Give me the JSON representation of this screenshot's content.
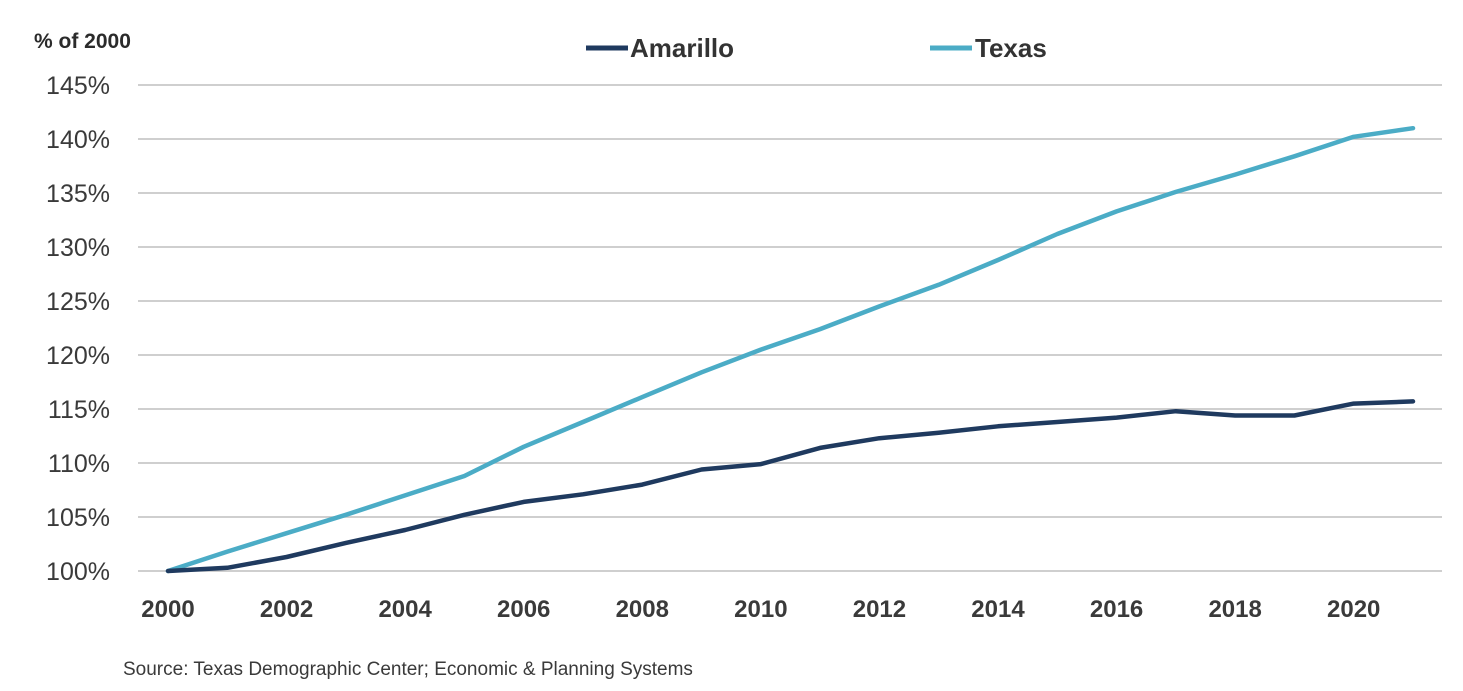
{
  "chart_data": {
    "type": "line",
    "ylabel": "% of 2000",
    "x": [
      2000,
      2001,
      2002,
      2003,
      2004,
      2005,
      2006,
      2007,
      2008,
      2009,
      2010,
      2011,
      2012,
      2013,
      2014,
      2015,
      2016,
      2017,
      2018,
      2019,
      2020,
      2021
    ],
    "series": [
      {
        "name": "Amarillo",
        "color": "#1f3a5f",
        "values": [
          100,
          100.3,
          101.3,
          102.6,
          103.8,
          105.2,
          106.4,
          107.1,
          108.0,
          109.4,
          109.9,
          111.4,
          112.3,
          112.8,
          113.4,
          113.8,
          114.2,
          114.8,
          114.4,
          114.4,
          115.5,
          115.7
        ]
      },
      {
        "name": "Texas",
        "color": "#4bacc6",
        "values": [
          100,
          101.8,
          103.5,
          105.2,
          107.0,
          108.8,
          111.5,
          113.8,
          116.1,
          118.4,
          120.5,
          122.4,
          124.5,
          126.5,
          128.8,
          131.2,
          133.3,
          135.1,
          136.7,
          138.4,
          140.2,
          141.0
        ]
      }
    ],
    "ylim": [
      100,
      145
    ],
    "yticks": [
      "100%",
      "105%",
      "110%",
      "115%",
      "120%",
      "125%",
      "130%",
      "135%",
      "140%",
      "145%"
    ],
    "ytick_values": [
      100,
      105,
      110,
      115,
      120,
      125,
      130,
      135,
      140,
      145
    ],
    "xticks": [
      "2000",
      "2002",
      "2004",
      "2006",
      "2008",
      "2010",
      "2012",
      "2014",
      "2016",
      "2018",
      "2020"
    ],
    "xtick_values": [
      2000,
      2002,
      2004,
      2006,
      2008,
      2010,
      2012,
      2014,
      2016,
      2018,
      2020
    ],
    "grid": true,
    "legend_position": "top-center"
  },
  "source_note": "Source: Texas Demographic Center; Economic & Planning Systems"
}
